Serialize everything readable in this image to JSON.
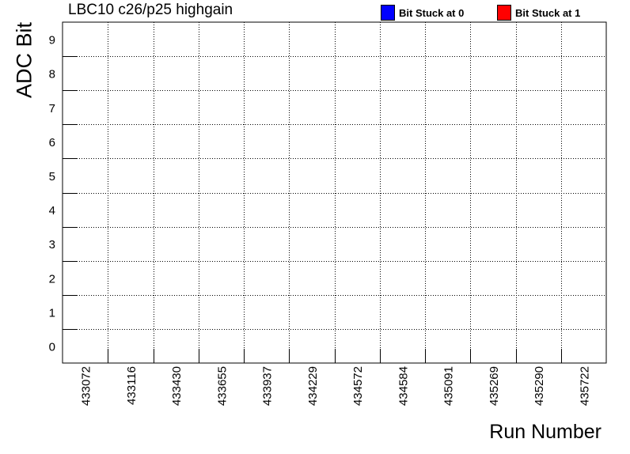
{
  "chart_data": {
    "type": "heatmap",
    "title": "LBC10 c26/p25 highgain",
    "xlabel": "Run Number",
    "ylabel": "ADC Bit",
    "categories": [
      "433072",
      "433116",
      "433430",
      "433655",
      "433937",
      "434229",
      "434572",
      "434584",
      "435091",
      "435269",
      "435290",
      "435722"
    ],
    "y_categories": [
      "0",
      "1",
      "2",
      "3",
      "4",
      "5",
      "6",
      "7",
      "8",
      "9"
    ],
    "legend": [
      {
        "label": "Bit Stuck at 0",
        "color": "#0000ff"
      },
      {
        "label": "Bit Stuck at 1",
        "color": "#ff0000"
      }
    ],
    "legend_position": "top-right",
    "stuck_cells": [],
    "grid": true
  }
}
